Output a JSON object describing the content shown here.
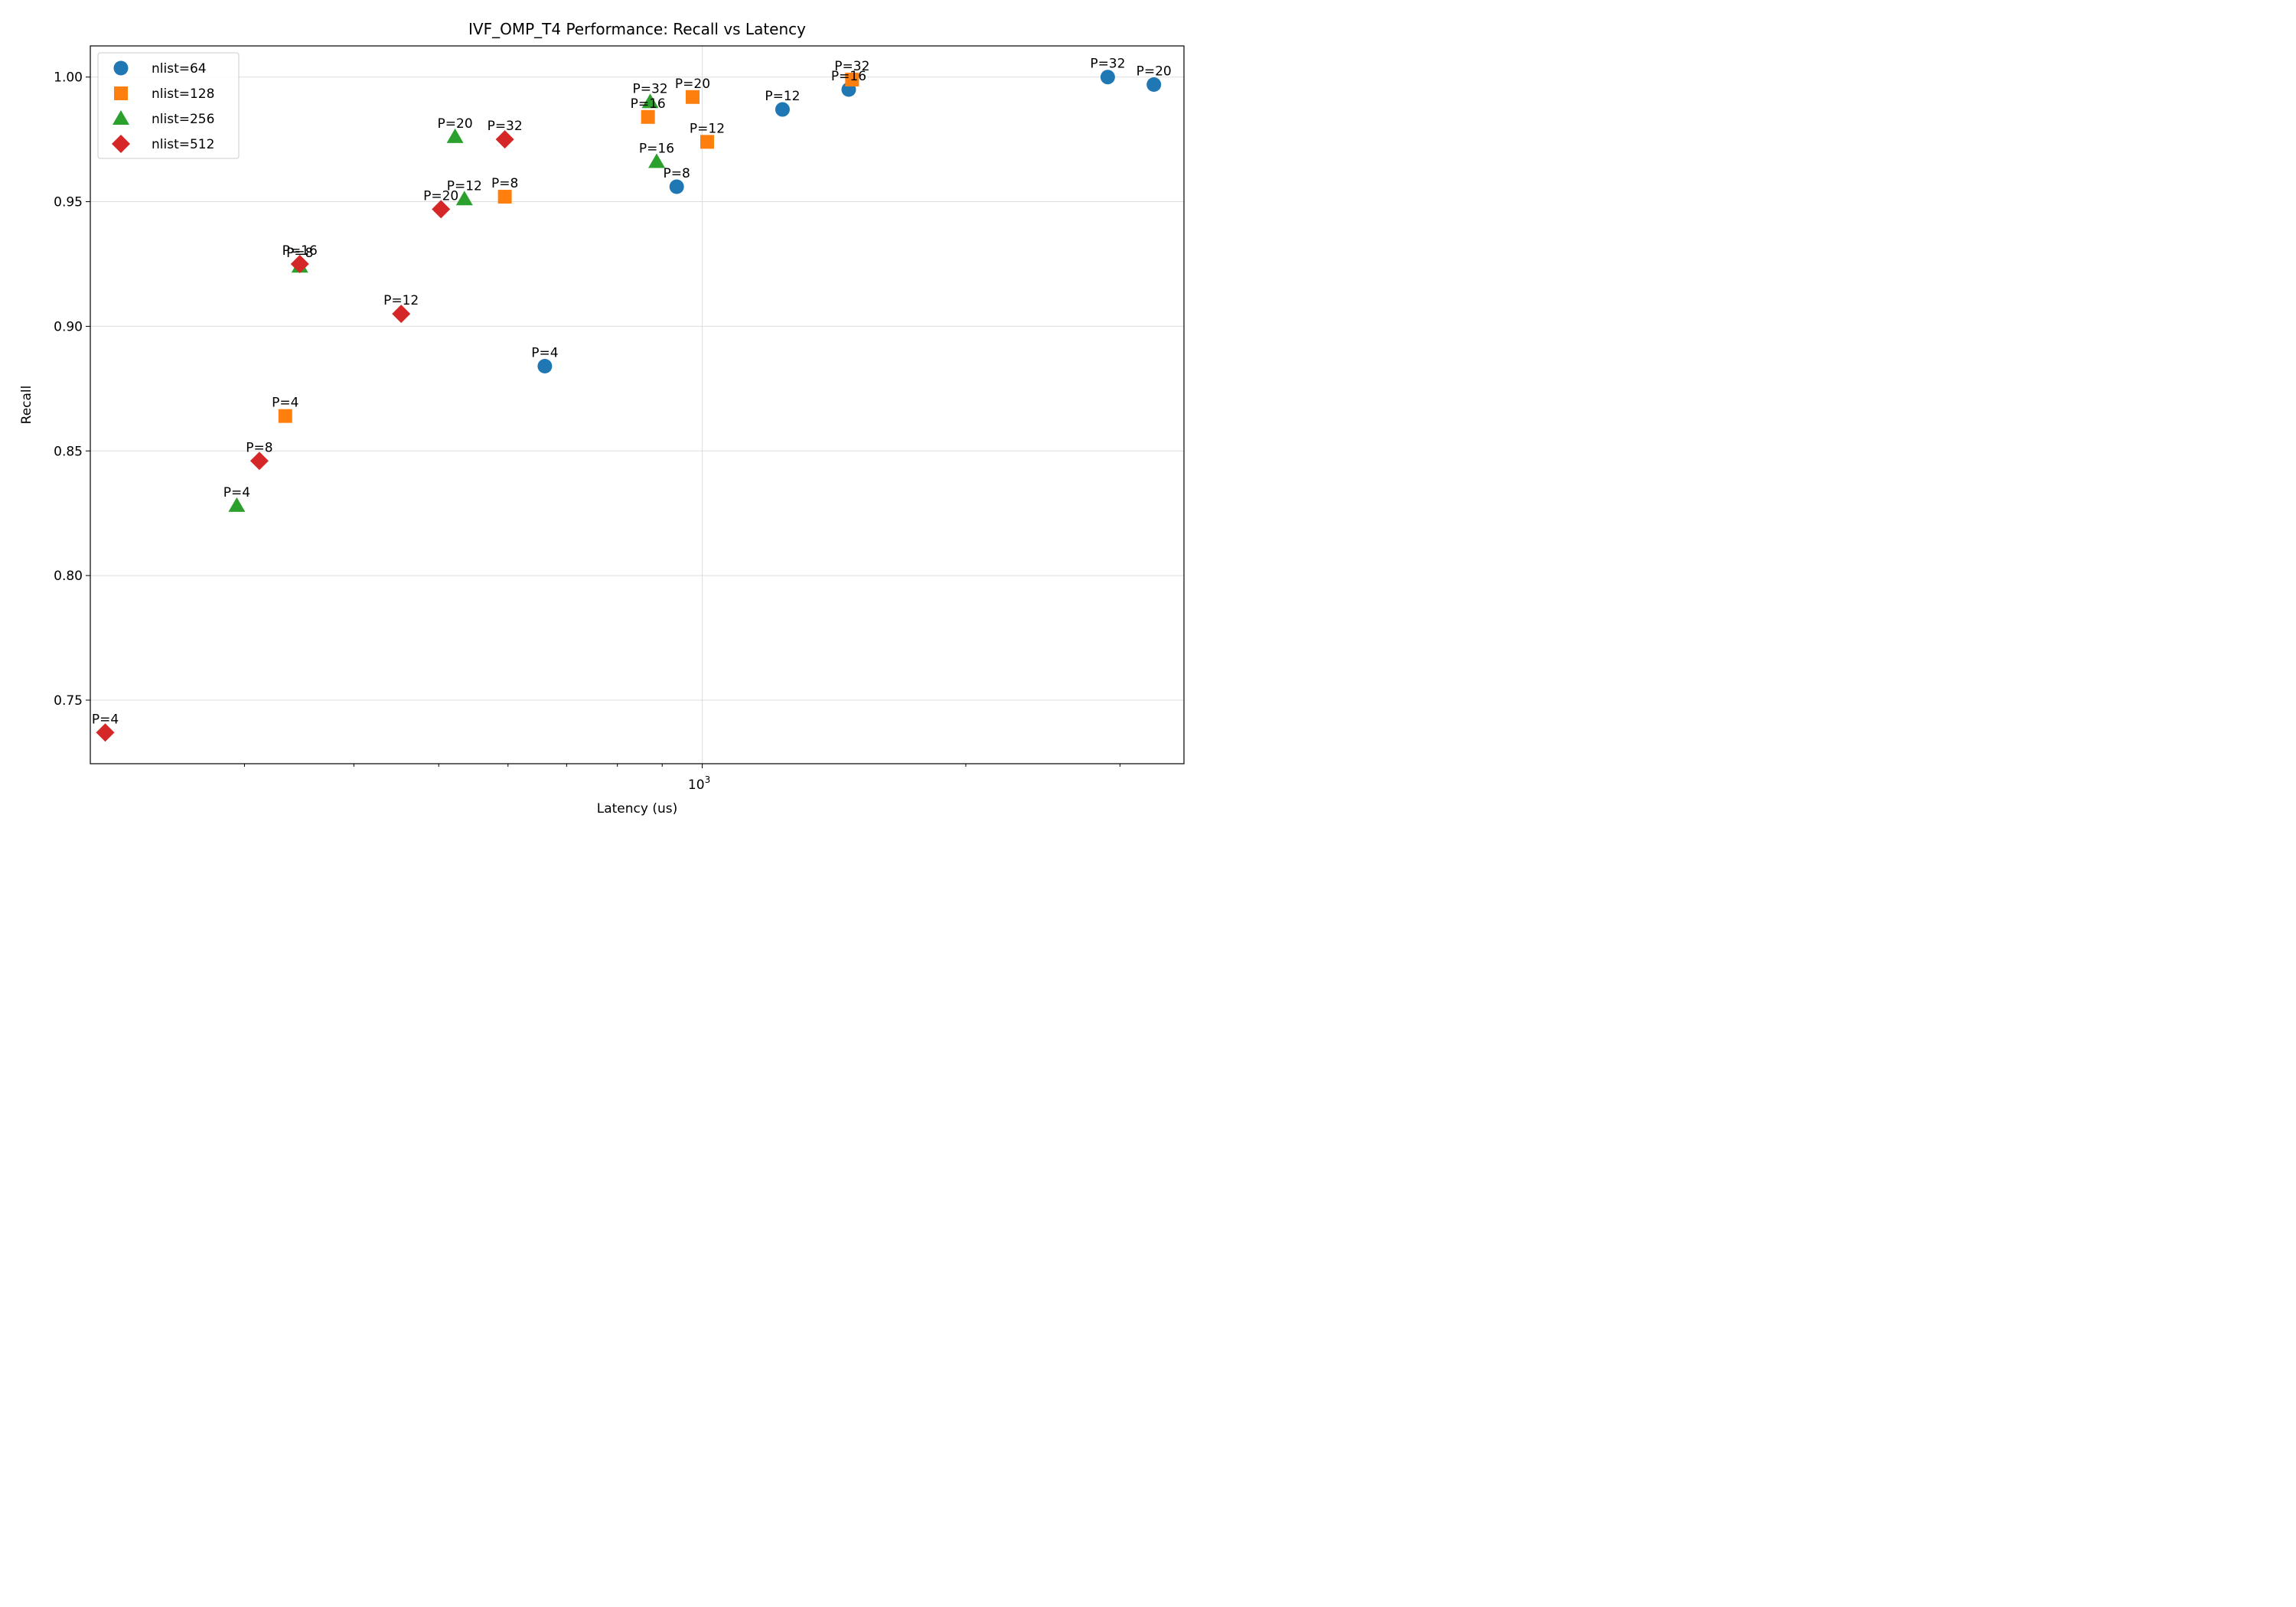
{
  "chart_data": {
    "type": "scatter",
    "title": "IVF_OMP_T4 Performance: Recall vs Latency",
    "xlabel": "Latency (us)",
    "ylabel": "Recall",
    "x_scale": "log",
    "xlim": [
      200,
      3550
    ],
    "ylim": [
      0.7245,
      1.0125
    ],
    "x_major_ticks": [
      {
        "value": 1000,
        "label": "10",
        "exp": "3"
      }
    ],
    "x_minor_ticks": [
      300,
      400,
      500,
      600,
      700,
      800,
      900,
      2000,
      3000
    ],
    "y_ticks": [
      0.75,
      0.8,
      0.85,
      0.9,
      0.95,
      1.0
    ],
    "y_tick_labels": [
      "0.75",
      "0.80",
      "0.85",
      "0.90",
      "0.95",
      "1.00"
    ],
    "grid": true,
    "legend_position": "top-left",
    "series": [
      {
        "name": "nlist=64",
        "marker": "circle",
        "color": "#1f77b4",
        "points": [
          {
            "label": "P=4",
            "x": 661,
            "y": 0.884
          },
          {
            "label": "P=8",
            "x": 935,
            "y": 0.956
          },
          {
            "label": "P=12",
            "x": 1235,
            "y": 0.987
          },
          {
            "label": "P=16",
            "x": 1470,
            "y": 0.995
          },
          {
            "label": "P=32",
            "x": 2905,
            "y": 1.0
          },
          {
            "label": "P=20",
            "x": 3280,
            "y": 0.997
          }
        ]
      },
      {
        "name": "nlist=128",
        "marker": "square",
        "color": "#ff7f0e",
        "points": [
          {
            "label": "P=4",
            "x": 334,
            "y": 0.864
          },
          {
            "label": "P=8",
            "x": 595,
            "y": 0.952
          },
          {
            "label": "P=12",
            "x": 1013,
            "y": 0.974
          },
          {
            "label": "P=16",
            "x": 867,
            "y": 0.984
          },
          {
            "label": "P=20",
            "x": 975,
            "y": 0.992
          },
          {
            "label": "P=32",
            "x": 1483,
            "y": 0.999
          }
        ]
      },
      {
        "name": "nlist=256",
        "marker": "triangle",
        "color": "#2ca02c",
        "points": [
          {
            "label": "P=4",
            "x": 294,
            "y": 0.828
          },
          {
            "label": "P=8",
            "x": 347,
            "y": 0.924
          },
          {
            "label": "P=12",
            "x": 535,
            "y": 0.951
          },
          {
            "label": "P=16",
            "x": 887,
            "y": 0.966
          },
          {
            "label": "P=20",
            "x": 522,
            "y": 0.976
          },
          {
            "label": "P=32",
            "x": 872,
            "y": 0.99
          }
        ]
      },
      {
        "name": "nlist=512",
        "marker": "diamond",
        "color": "#d62728",
        "points": [
          {
            "label": "P=4",
            "x": 208,
            "y": 0.737
          },
          {
            "label": "P=8",
            "x": 312,
            "y": 0.846
          },
          {
            "label": "P=12",
            "x": 453,
            "y": 0.905
          },
          {
            "label": "P=16",
            "x": 347,
            "y": 0.925
          },
          {
            "label": "P=20",
            "x": 503,
            "y": 0.947
          },
          {
            "label": "P=32",
            "x": 595,
            "y": 0.975
          }
        ]
      }
    ]
  }
}
